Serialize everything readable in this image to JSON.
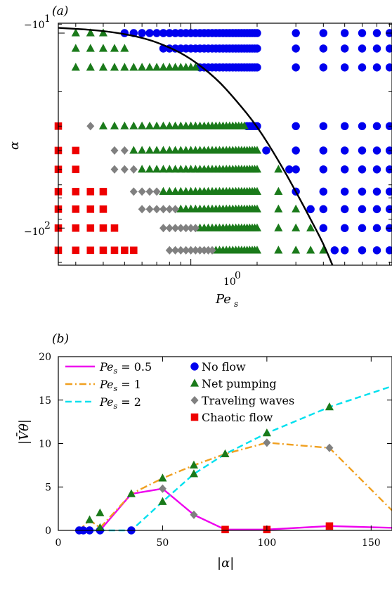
{
  "chart_data": [
    {
      "type": "scatter",
      "panel_label": "(a)",
      "xlabel": "Pe",
      "xlabel_sub": "s",
      "ylabel": "α",
      "x_scale": "log",
      "y_scale": "log (negative values)",
      "x_tick_labels": [
        {
          "value": 1,
          "base": "10",
          "exp": "0"
        }
      ],
      "y_tick_labels": [
        {
          "value": -10,
          "base": "−10",
          "exp": "1"
        },
        {
          "value": -100,
          "base": "−10",
          "exp": "2"
        }
      ],
      "xlim": [
        0.25,
        8.2
      ],
      "ylim": [
        -8.9,
        -155
      ],
      "curve": {
        "name": "boundary",
        "color": "#000000",
        "points": [
          [
            0.25,
            -9.4
          ],
          [
            0.4,
            -9.7
          ],
          [
            0.6,
            -10.5
          ],
          [
            0.8,
            -11.8
          ],
          [
            1.0,
            -13.5
          ],
          [
            1.3,
            -17
          ],
          [
            1.6,
            -22
          ],
          [
            2.0,
            -30
          ],
          [
            2.5,
            -45
          ],
          [
            3.0,
            -65
          ],
          [
            3.5,
            -90
          ],
          [
            4.0,
            -120
          ],
          [
            4.4,
            -155
          ]
        ]
      },
      "series": [
        {
          "name": "No flow",
          "marker": "circle",
          "color": "#0000ee",
          "rows": [
            {
              "alpha": -10,
              "pe": [
                0.5,
                0.55,
                0.6,
                0.65,
                0.7,
                0.75,
                0.8,
                0.85,
                0.9,
                0.95,
                1.0,
                1.05,
                1.1,
                1.15,
                1.2,
                1.25,
                1.3,
                1.35,
                1.4,
                1.45,
                1.5,
                1.55,
                1.6,
                1.65,
                1.7,
                1.75,
                1.8,
                1.85,
                1.9,
                1.95,
                2.0,
                3.0,
                4.0,
                5.0,
                6.0,
                7.0,
                8.0
              ]
            },
            {
              "alpha": -12,
              "pe": [
                0.75,
                0.8,
                0.85,
                0.9,
                0.95,
                1.0,
                1.05,
                1.1,
                1.15,
                1.2,
                1.25,
                1.3,
                1.35,
                1.4,
                1.45,
                1.5,
                1.55,
                1.6,
                1.65,
                1.7,
                1.75,
                1.8,
                1.85,
                1.9,
                1.95,
                2.0,
                3.0,
                4.0,
                5.0,
                6.0,
                7.0,
                8.0
              ]
            },
            {
              "alpha": -15,
              "pe": [
                1.1,
                1.15,
                1.2,
                1.25,
                1.3,
                1.35,
                1.4,
                1.45,
                1.5,
                1.55,
                1.6,
                1.65,
                1.7,
                1.75,
                1.8,
                1.85,
                1.9,
                1.95,
                2.0,
                3.0,
                4.0,
                5.0,
                6.0,
                7.0,
                8.0
              ]
            },
            {
              "alpha": -30,
              "pe": [
                1.8,
                1.85,
                1.9,
                1.95,
                2.0,
                3.0,
                4.0,
                5.0,
                6.0,
                7.0,
                8.0
              ]
            },
            {
              "alpha": -40,
              "pe": [
                2.2,
                3.0,
                4.0,
                5.0,
                6.0,
                7.0,
                8.0
              ]
            },
            {
              "alpha": -50,
              "pe": [
                2.8,
                3.0,
                4.0,
                5.0,
                6.0,
                7.0,
                8.0
              ]
            },
            {
              "alpha": -65,
              "pe": [
                3.0,
                4.0,
                5.0,
                6.0,
                7.0,
                8.0
              ]
            },
            {
              "alpha": -80,
              "pe": [
                3.5,
                4.0,
                5.0,
                6.0,
                7.0,
                8.0
              ]
            },
            {
              "alpha": -100,
              "pe": [
                4.0,
                5.0,
                6.0,
                7.0,
                8.0
              ]
            },
            {
              "alpha": -130,
              "pe": [
                4.5,
                5.0,
                6.0,
                7.0,
                8.0
              ]
            }
          ]
        },
        {
          "name": "Net pumping",
          "marker": "triangle",
          "color": "#1a7a1a",
          "rows": [
            {
              "alpha": -10,
              "pe": [
                0.3,
                0.35,
                0.4
              ]
            },
            {
              "alpha": -12,
              "pe": [
                0.3,
                0.35,
                0.4,
                0.45,
                0.5
              ]
            },
            {
              "alpha": -15,
              "pe": [
                0.3,
                0.35,
                0.4,
                0.45,
                0.5,
                0.55,
                0.6,
                0.65,
                0.7,
                0.75,
                0.8,
                0.85,
                0.9,
                0.95,
                1.0,
                1.05
              ]
            },
            {
              "alpha": -30,
              "pe": [
                0.4,
                0.45,
                0.5,
                0.55,
                0.6,
                0.65,
                0.7,
                0.75,
                0.8,
                0.85,
                0.9,
                0.95,
                1.0,
                1.05,
                1.1,
                1.15,
                1.2,
                1.25,
                1.3,
                1.35,
                1.4,
                1.45,
                1.5,
                1.55,
                1.6,
                1.65,
                1.7,
                1.75
              ]
            },
            {
              "alpha": -40,
              "pe": [
                0.55,
                0.6,
                0.65,
                0.7,
                0.75,
                0.8,
                0.85,
                0.9,
                0.95,
                1.0,
                1.05,
                1.1,
                1.15,
                1.2,
                1.25,
                1.3,
                1.35,
                1.4,
                1.45,
                1.5,
                1.55,
                1.6,
                1.65,
                1.7,
                1.75,
                1.8,
                1.85,
                1.9,
                1.95,
                2.0
              ]
            },
            {
              "alpha": -50,
              "pe": [
                0.6,
                0.65,
                0.7,
                0.75,
                0.8,
                0.85,
                0.9,
                0.95,
                1.0,
                1.05,
                1.1,
                1.15,
                1.2,
                1.25,
                1.3,
                1.35,
                1.4,
                1.45,
                1.5,
                1.55,
                1.6,
                1.65,
                1.7,
                1.75,
                1.8,
                1.85,
                1.9,
                1.95,
                2.0,
                2.5
              ]
            },
            {
              "alpha": -65,
              "pe": [
                0.75,
                0.8,
                0.85,
                0.9,
                0.95,
                1.0,
                1.05,
                1.1,
                1.15,
                1.2,
                1.25,
                1.3,
                1.35,
                1.4,
                1.45,
                1.5,
                1.55,
                1.6,
                1.65,
                1.7,
                1.75,
                1.8,
                1.85,
                1.9,
                1.95,
                2.0,
                2.5
              ]
            },
            {
              "alpha": -80,
              "pe": [
                0.9,
                0.95,
                1.0,
                1.05,
                1.1,
                1.15,
                1.2,
                1.25,
                1.3,
                1.35,
                1.4,
                1.45,
                1.5,
                1.55,
                1.6,
                1.65,
                1.7,
                1.75,
                1.8,
                1.85,
                1.9,
                1.95,
                2.0,
                2.5,
                3.0
              ]
            },
            {
              "alpha": -100,
              "pe": [
                1.1,
                1.15,
                1.2,
                1.25,
                1.3,
                1.35,
                1.4,
                1.45,
                1.5,
                1.55,
                1.6,
                1.65,
                1.7,
                1.75,
                1.8,
                1.85,
                1.9,
                1.95,
                2.0,
                2.5,
                3.0,
                3.5
              ]
            },
            {
              "alpha": -130,
              "pe": [
                1.3,
                1.35,
                1.4,
                1.45,
                1.5,
                1.55,
                1.6,
                1.65,
                1.7,
                1.75,
                1.8,
                1.85,
                1.9,
                1.95,
                2.0,
                2.5,
                3.0,
                3.5,
                4.0
              ]
            }
          ]
        },
        {
          "name": "Traveling waves",
          "marker": "diamond",
          "color": "#808080",
          "rows": [
            {
              "alpha": -30,
              "pe": [
                0.35
              ]
            },
            {
              "alpha": -40,
              "pe": [
                0.45,
                0.5
              ]
            },
            {
              "alpha": -50,
              "pe": [
                0.45,
                0.5,
                0.55
              ]
            },
            {
              "alpha": -65,
              "pe": [
                0.55,
                0.6,
                0.65,
                0.7
              ]
            },
            {
              "alpha": -80,
              "pe": [
                0.6,
                0.65,
                0.7,
                0.75,
                0.8,
                0.85
              ]
            },
            {
              "alpha": -100,
              "pe": [
                0.75,
                0.8,
                0.85,
                0.9,
                0.95,
                1.0,
                1.05
              ]
            },
            {
              "alpha": -130,
              "pe": [
                0.8,
                0.85,
                0.9,
                0.95,
                1.0,
                1.05,
                1.1,
                1.15,
                1.2,
                1.25
              ]
            }
          ]
        },
        {
          "name": "Chaotic flow",
          "marker": "square",
          "color": "#ee0000",
          "rows": [
            {
              "alpha": -30,
              "pe": [
                0.25
              ]
            },
            {
              "alpha": -40,
              "pe": [
                0.25,
                0.3
              ]
            },
            {
              "alpha": -50,
              "pe": [
                0.25,
                0.3
              ]
            },
            {
              "alpha": -65,
              "pe": [
                0.25,
                0.3,
                0.35,
                0.4
              ]
            },
            {
              "alpha": -80,
              "pe": [
                0.25,
                0.3,
                0.35,
                0.4
              ]
            },
            {
              "alpha": -100,
              "pe": [
                0.25,
                0.3,
                0.35,
                0.4,
                0.45
              ]
            },
            {
              "alpha": -130,
              "pe": [
                0.25,
                0.3,
                0.35,
                0.4,
                0.45,
                0.5,
                0.55
              ]
            }
          ]
        }
      ]
    },
    {
      "type": "line",
      "panel_label": "(b)",
      "xlabel": "|α|",
      "ylabel": "|V̄θ|",
      "xlim": [
        0,
        160
      ],
      "ylim": [
        0,
        20
      ],
      "x_ticks": [
        0,
        50,
        100,
        150
      ],
      "y_ticks": [
        0,
        5,
        10,
        15,
        20
      ],
      "series": [
        {
          "name": "Pe_s = 0.5",
          "label_base": "Pe",
          "label_sub": "s",
          "label_rhs": " = 0.5",
          "color": "#ee00ee",
          "dash": "solid",
          "points": [
            [
              10,
              0
            ],
            [
              12,
              0
            ],
            [
              15,
              0
            ],
            [
              20,
              0
            ],
            [
              35,
              4.2
            ],
            [
              50,
              4.8
            ],
            [
              65,
              1.8
            ],
            [
              80,
              0.1
            ],
            [
              100,
              0.1
            ],
            [
              130,
              0.5
            ],
            [
              160,
              0.3
            ]
          ]
        },
        {
          "name": "Pe_s = 1",
          "label_base": "Pe",
          "label_sub": "s",
          "label_rhs": " = 1",
          "color": "#f0a020",
          "dash": "dashdot",
          "points": [
            [
              10,
              0
            ],
            [
              15,
              1.2
            ],
            [
              20,
              0.3
            ],
            [
              35,
              4.2
            ],
            [
              50,
              6.0
            ],
            [
              65,
              7.5
            ],
            [
              80,
              8.8
            ],
            [
              100,
              10.1
            ],
            [
              130,
              9.5
            ],
            [
              160,
              2.3
            ]
          ]
        },
        {
          "name": "Pe_s = 2",
          "label_base": "Pe",
          "label_sub": "s",
          "label_rhs": " = 2",
          "color": "#00e0ee",
          "dash": "dashed",
          "points": [
            [
              10,
              0
            ],
            [
              15,
              0
            ],
            [
              20,
              0
            ],
            [
              35,
              0
            ],
            [
              50,
              3.3
            ],
            [
              65,
              6.5
            ],
            [
              80,
              8.8
            ],
            [
              100,
              11.2
            ],
            [
              130,
              14.2
            ],
            [
              160,
              16.6
            ]
          ]
        }
      ],
      "markers": [
        {
          "state": "No flow",
          "points": [
            [
              10,
              0
            ],
            [
              12,
              0
            ],
            [
              15,
              0
            ],
            [
              20,
              0
            ],
            [
              35,
              0
            ]
          ]
        },
        {
          "state": "Net pumping",
          "points": [
            [
              15,
              1.2
            ],
            [
              20,
              2.0
            ],
            [
              20,
              0.3
            ],
            [
              35,
              4.2
            ],
            [
              50,
              6.0
            ],
            [
              50,
              3.3
            ],
            [
              65,
              7.5
            ],
            [
              65,
              6.5
            ],
            [
              80,
              8.8
            ],
            [
              100,
              11.2
            ],
            [
              130,
              14.2
            ]
          ]
        },
        {
          "state": "Traveling waves",
          "points": [
            [
              50,
              4.8
            ],
            [
              65,
              1.8
            ],
            [
              100,
              10.1
            ],
            [
              130,
              9.5
            ]
          ]
        },
        {
          "state": "Chaotic flow",
          "points": [
            [
              80,
              0.1
            ],
            [
              100,
              0.1
            ],
            [
              130,
              0.5
            ]
          ]
        }
      ],
      "legend_lines_placement": "top-left",
      "legend_markers_placement": "top-center",
      "legend_markers": [
        {
          "label": "No flow",
          "marker": "circle",
          "color": "#0000ee"
        },
        {
          "label": "Net pumping",
          "marker": "triangle",
          "color": "#1a7a1a"
        },
        {
          "label": "Traveling waves",
          "marker": "diamond",
          "color": "#808080"
        },
        {
          "label": "Chaotic flow",
          "marker": "square",
          "color": "#ee0000"
        }
      ]
    }
  ]
}
